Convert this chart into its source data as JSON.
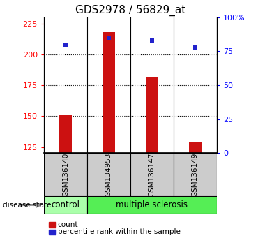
{
  "title": "GDS2978 / 56829_at",
  "samples": [
    "GSM136140",
    "GSM134953",
    "GSM136147",
    "GSM136149"
  ],
  "counts": [
    151,
    218,
    182,
    129
  ],
  "percentiles": [
    80,
    85,
    83,
    78
  ],
  "ylim_left": [
    120,
    230
  ],
  "ylim_right": [
    0,
    100
  ],
  "yticks_left": [
    125,
    150,
    175,
    200,
    225
  ],
  "yticks_right": [
    0,
    25,
    50,
    75,
    100
  ],
  "ytick_right_labels": [
    "0",
    "25",
    "50",
    "75",
    "100%"
  ],
  "bar_color": "#cc1111",
  "dot_color": "#2222cc",
  "bar_width": 0.3,
  "ctrl_color": "#aaffaa",
  "ms_color": "#55ee55",
  "sample_area_color": "#cccccc",
  "group_label": "disease state",
  "legend_count_label": "count",
  "legend_pct_label": "percentile rank within the sample",
  "title_fontsize": 11,
  "tick_fontsize": 8,
  "sample_fontsize": 7.5,
  "group_fontsize": 8.5
}
